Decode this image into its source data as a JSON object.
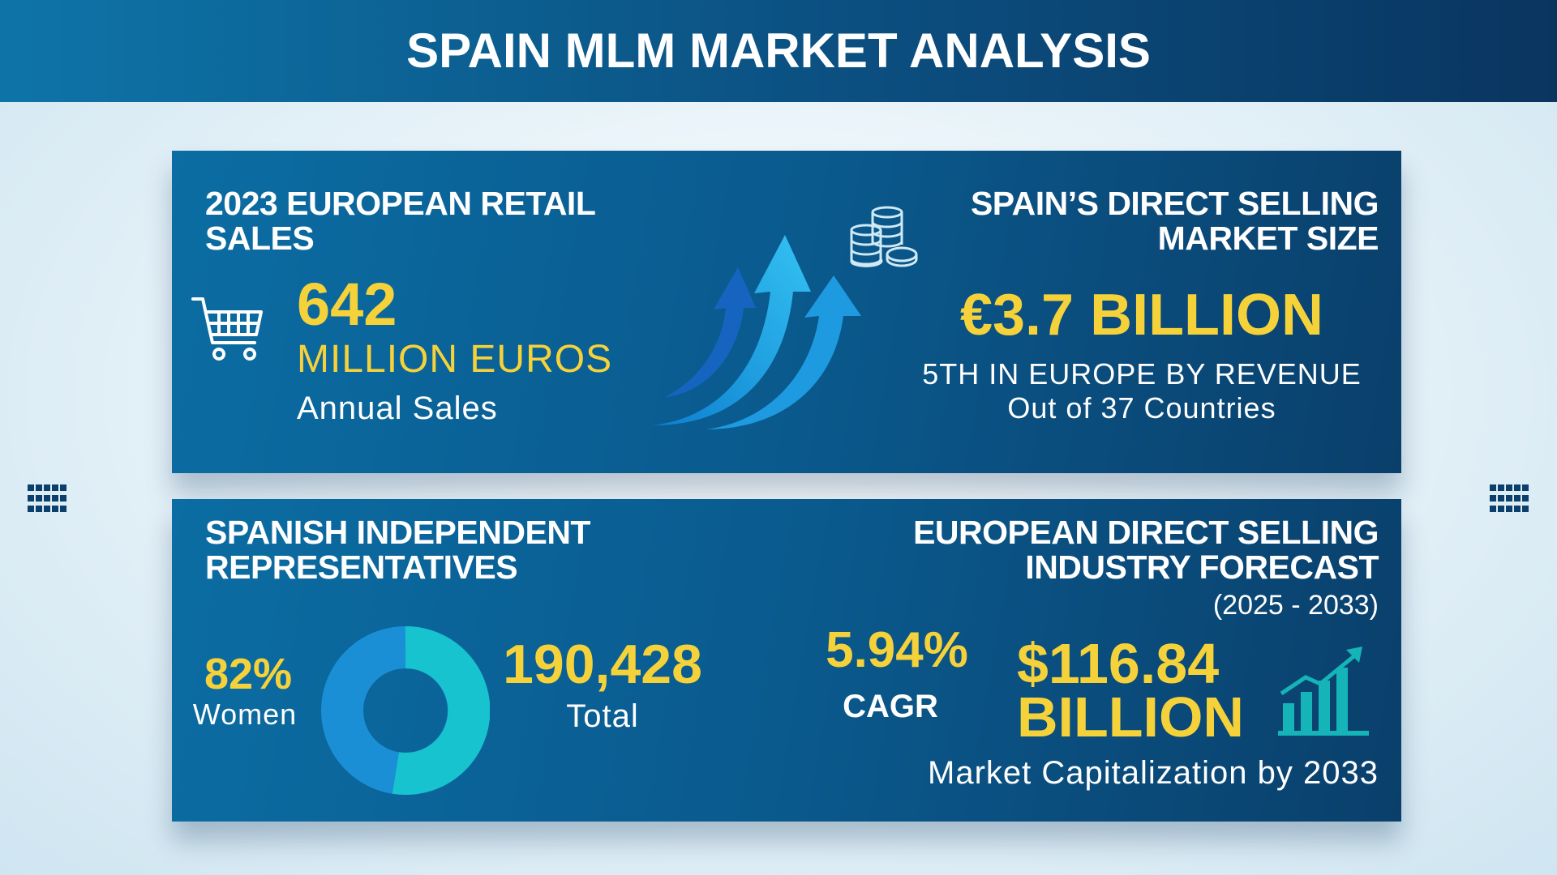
{
  "header": {
    "title": "SPAIN MLM MARKET ANALYSIS"
  },
  "retail_sales": {
    "title": "2023 EUROPEAN RETAIL SALES",
    "value": "642",
    "unit": "MILLION EUROS",
    "caption": "Annual Sales"
  },
  "market_size": {
    "title": "SPAIN’S DIRECT SELLING MARKET SIZE",
    "value": "€3.7 BILLION",
    "rank": "5TH IN EUROPE BY REVENUE",
    "note": "Out of 37 Countries"
  },
  "representatives": {
    "title": "SPANISH INDEPENDENT REPRESENTATIVES",
    "women_share": "82%",
    "women_label": "Women",
    "total": "190,428",
    "total_label": "Total"
  },
  "forecast": {
    "title": "EUROPEAN DIRECT SELLING INDUSTRY FORECAST",
    "period": "(2025 - 2033)",
    "cagr": "5.94%",
    "cagr_label": "CAGR",
    "value": "$116.84 BILLION",
    "caption": "Market Capitalization by 2033"
  }
}
